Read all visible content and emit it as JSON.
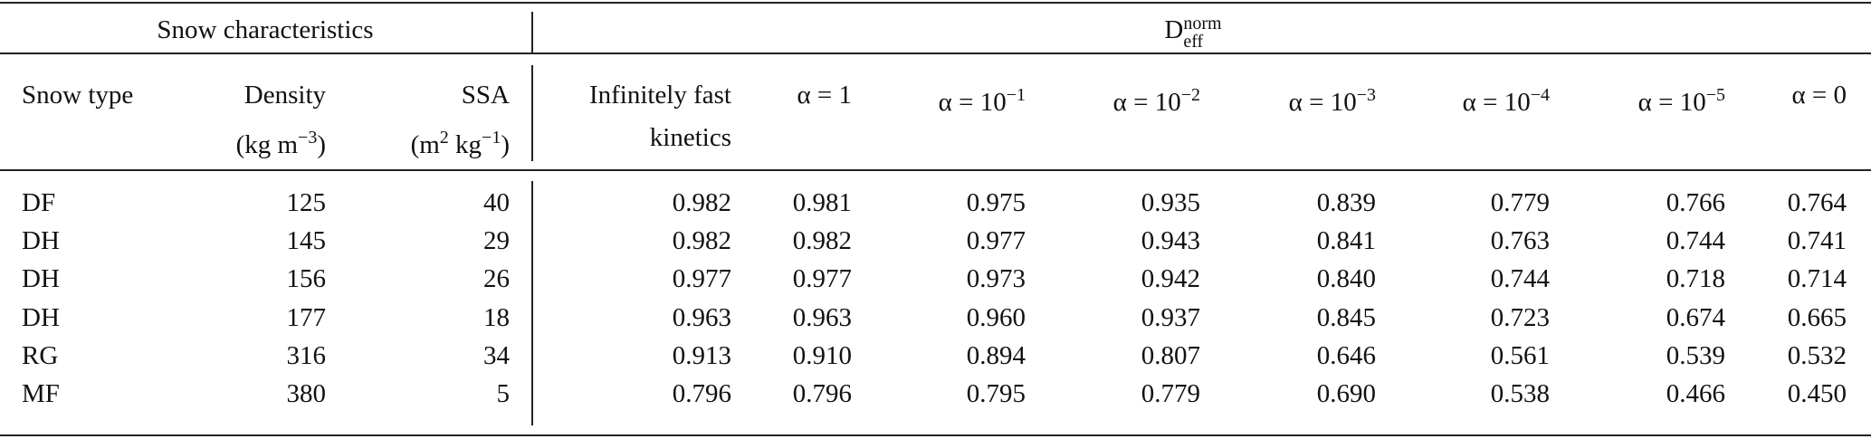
{
  "header": {
    "groups": [
      "Snow characteristics",
      {
        "base": "D",
        "sup": "norm",
        "sub": "eff"
      }
    ]
  },
  "columns": [
    {
      "line1": "Snow type"
    },
    {
      "line1": "Density",
      "line2": {
        "pre": "(kg m",
        "sup": "−3",
        "post": ")"
      }
    },
    {
      "line1": "SSA",
      "line2": {
        "pre": "(m",
        "sup": "2",
        "mid": " kg",
        "sup2": "−1",
        "post": ")"
      }
    },
    {
      "line1": "Infinitely fast",
      "line2": "kinetics"
    },
    {
      "line1": "α = 1"
    },
    {
      "line1": {
        "base": "α = 10",
        "sup": "−1"
      }
    },
    {
      "line1": {
        "base": "α = 10",
        "sup": "−2"
      }
    },
    {
      "line1": {
        "base": "α = 10",
        "sup": "−3"
      }
    },
    {
      "line1": {
        "base": "α = 10",
        "sup": "−4"
      }
    },
    {
      "line1": {
        "base": "α = 10",
        "sup": "−5"
      }
    },
    {
      "line1": "α = 0"
    }
  ],
  "rows": [
    [
      "DF",
      "125",
      "40",
      "0.982",
      "0.981",
      "0.975",
      "0.935",
      "0.839",
      "0.779",
      "0.766",
      "0.764"
    ],
    [
      "DH",
      "145",
      "29",
      "0.982",
      "0.982",
      "0.977",
      "0.943",
      "0.841",
      "0.763",
      "0.744",
      "0.741"
    ],
    [
      "DH",
      "156",
      "26",
      "0.977",
      "0.977",
      "0.973",
      "0.942",
      "0.840",
      "0.744",
      "0.718",
      "0.714"
    ],
    [
      "DH",
      "177",
      "18",
      "0.963",
      "0.963",
      "0.960",
      "0.937",
      "0.845",
      "0.723",
      "0.674",
      "0.665"
    ],
    [
      "RG",
      "316",
      "34",
      "0.913",
      "0.910",
      "0.894",
      "0.807",
      "0.646",
      "0.561",
      "0.539",
      "0.532"
    ],
    [
      "MF",
      "380",
      "5",
      "0.796",
      "0.796",
      "0.795",
      "0.779",
      "0.690",
      "0.538",
      "0.466",
      "0.450"
    ]
  ]
}
